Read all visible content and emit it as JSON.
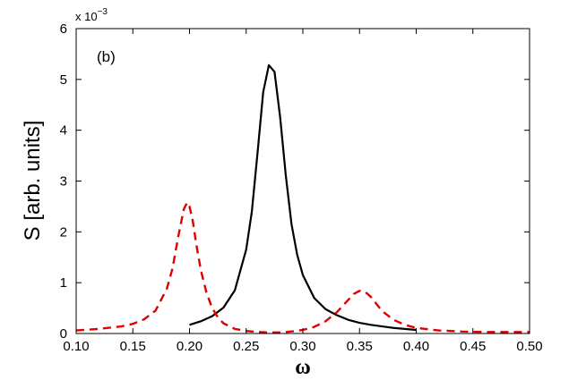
{
  "chart_data": {
    "type": "line",
    "panel_label": "(b)",
    "xlabel": "ω",
    "ylabel": "S [arb. units]",
    "y_multiplier": "x 10",
    "y_multiplier_exponent": "−3",
    "xlim": [
      0.1,
      0.5
    ],
    "ylim": [
      0,
      6
    ],
    "xticks": [
      "0.10",
      "0.15",
      "0.20",
      "0.25",
      "0.30",
      "0.35",
      "0.40",
      "0.45",
      "0.50"
    ],
    "yticks": [
      "0",
      "1",
      "2",
      "3",
      "4",
      "5",
      "6"
    ],
    "grid": false,
    "series": [
      {
        "style": "solid",
        "color": "#000000",
        "x": [
          0.2,
          0.21,
          0.22,
          0.23,
          0.24,
          0.25,
          0.255,
          0.26,
          0.265,
          0.27,
          0.275,
          0.28,
          0.285,
          0.29,
          0.295,
          0.3,
          0.31,
          0.32,
          0.33,
          0.34,
          0.35,
          0.36,
          0.37,
          0.38,
          0.39,
          0.4
        ],
        "y": [
          0.17,
          0.24,
          0.34,
          0.51,
          0.85,
          1.65,
          2.4,
          3.55,
          4.75,
          5.28,
          5.15,
          4.25,
          3.1,
          2.15,
          1.55,
          1.15,
          0.7,
          0.48,
          0.36,
          0.27,
          0.21,
          0.17,
          0.14,
          0.11,
          0.09,
          0.07
        ]
      },
      {
        "style": "dashed",
        "color": "#e00000",
        "x": [
          0.1,
          0.12,
          0.14,
          0.15,
          0.16,
          0.17,
          0.18,
          0.185,
          0.19,
          0.195,
          0.198,
          0.2,
          0.203,
          0.206,
          0.21,
          0.215,
          0.22,
          0.225,
          0.23,
          0.24,
          0.25,
          0.26,
          0.27,
          0.28,
          0.29,
          0.3,
          0.31,
          0.32,
          0.33,
          0.34,
          0.345,
          0.35,
          0.355,
          0.36,
          0.365,
          0.37,
          0.38,
          0.39,
          0.4,
          0.42,
          0.44,
          0.46,
          0.48,
          0.5
        ],
        "y": [
          0.06,
          0.09,
          0.14,
          0.19,
          0.28,
          0.45,
          0.88,
          1.28,
          1.9,
          2.45,
          2.58,
          2.5,
          2.2,
          1.75,
          1.25,
          0.8,
          0.5,
          0.32,
          0.2,
          0.09,
          0.05,
          0.03,
          0.02,
          0.02,
          0.04,
          0.07,
          0.13,
          0.24,
          0.42,
          0.66,
          0.78,
          0.84,
          0.82,
          0.72,
          0.58,
          0.44,
          0.27,
          0.17,
          0.11,
          0.06,
          0.04,
          0.03,
          0.03,
          0.03
        ]
      }
    ]
  }
}
